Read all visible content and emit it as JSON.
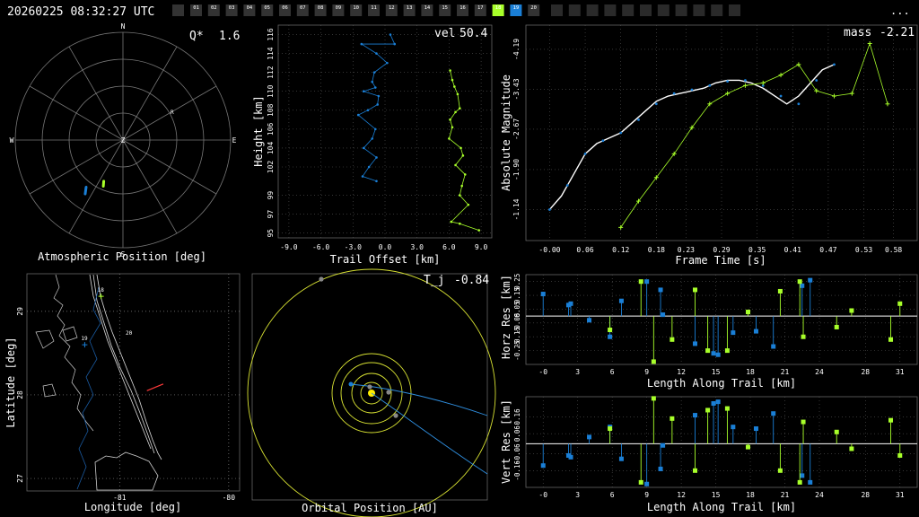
{
  "header": {
    "timestamp": "20260225 08:32:27 UTC",
    "menu": "...",
    "cameras": {
      "labels": [
        "01",
        "02",
        "03",
        "04",
        "05",
        "06",
        "07",
        "08",
        "09",
        "10",
        "11",
        "12",
        "13",
        "14",
        "15",
        "16",
        "17",
        "18",
        "19",
        "20"
      ],
      "active_green": "18",
      "active_blue": "19"
    }
  },
  "colors": {
    "green": "#a8ff2a",
    "blue": "#1a7fd6",
    "white": "#ffffff",
    "grid": "#555555",
    "orbit": "#d6e032",
    "sun": "#ffee00"
  },
  "chart_data": [
    {
      "type": "polar",
      "id": "atmospheric",
      "xlabel": "Atmospheric Position [deg]",
      "directions": [
        "N",
        "E",
        "S",
        "W",
        "Z"
      ],
      "annotation": {
        "label": "Q*",
        "value": "1.6"
      },
      "marker_label": "R",
      "series": [
        {
          "name": "18",
          "color": "green",
          "points": [
            [
              205,
              52
            ],
            [
              203,
              48
            ]
          ]
        },
        {
          "name": "19",
          "color": "blue",
          "points": [
            [
              218,
              40
            ],
            [
              215,
              35
            ]
          ]
        }
      ]
    },
    {
      "type": "line",
      "id": "height",
      "xlabel": "Trail Offset [km]",
      "ylabel": "Height [km]",
      "annotation": {
        "label": "vel",
        "value": "50.4"
      },
      "xticks": [
        "-9.0",
        "-6.0",
        "-3.0",
        "0.0",
        "3.0",
        "6.0",
        "9.0"
      ],
      "yticks": [
        "95",
        "97",
        "99",
        "102",
        "104",
        "106",
        "108",
        "110",
        "112",
        "114",
        "116"
      ],
      "xlim": [
        -10,
        10
      ],
      "ylim": [
        94.5,
        117
      ],
      "series": [
        {
          "name": "19",
          "color": "blue",
          "x": [
            0.5,
            0.9,
            -2.2,
            -0.8,
            0.2,
            -1.0,
            -1.2,
            -0.9,
            -2.0,
            -0.6,
            -0.7,
            -1.6,
            -2.5,
            -0.9,
            -1.2,
            -2.0,
            -0.8,
            -1.5,
            -2.1,
            -0.8
          ],
          "y": [
            116,
            115,
            115,
            114,
            113,
            112,
            111,
            110.4,
            110,
            109.5,
            108.6,
            108,
            107.5,
            106,
            105,
            104,
            103,
            102,
            101,
            100.5
          ]
        },
        {
          "name": "18",
          "color": "green",
          "x": [
            6.1,
            6.3,
            6.5,
            6.8,
            7.0,
            6.6,
            6.1,
            6.3,
            6.0,
            7.1,
            7.3,
            6.6,
            7.5,
            7.2,
            7.0,
            7.8,
            6.2,
            7.0,
            8.8
          ],
          "y": [
            112.2,
            111.2,
            110.5,
            109.7,
            108.2,
            107.8,
            107,
            106.2,
            105,
            104,
            103.2,
            102.2,
            101.2,
            100,
            99,
            98,
            96.2,
            96,
            95.3
          ]
        }
      ]
    },
    {
      "type": "line",
      "id": "magnitude",
      "xlabel": "Frame Time [s]",
      "ylabel": "Absolute Magnitude",
      "annotation": {
        "label": "mass",
        "value": "-2.21"
      },
      "xticks": [
        "-0.00",
        "0.06",
        "0.12",
        "0.18",
        "0.23",
        "0.29",
        "0.35",
        "0.41",
        "0.47",
        "0.53",
        "0.58"
      ],
      "yticks": [
        "-1.14",
        "-1.90",
        "-2.67",
        "-3.43",
        "-4.19"
      ],
      "xlim": [
        -0.04,
        0.62
      ],
      "ylim": [
        -0.55,
        -4.65
      ],
      "series": [
        {
          "name": "fit",
          "color": "white",
          "x": [
            0,
            0.02,
            0.04,
            0.06,
            0.08,
            0.1,
            0.12,
            0.14,
            0.16,
            0.18,
            0.2,
            0.22,
            0.24,
            0.26,
            0.28,
            0.3,
            0.32,
            0.34,
            0.36,
            0.38,
            0.4,
            0.42,
            0.44,
            0.46,
            0.48
          ],
          "y": [
            -1.14,
            -1.4,
            -1.8,
            -2.2,
            -2.4,
            -2.5,
            -2.6,
            -2.8,
            -3.0,
            -3.2,
            -3.3,
            -3.35,
            -3.4,
            -3.45,
            -3.55,
            -3.6,
            -3.6,
            -3.55,
            -3.45,
            -3.3,
            -3.15,
            -3.3,
            -3.55,
            -3.8,
            -3.9
          ]
        },
        {
          "name": "19",
          "color": "blue",
          "x": [
            0,
            0.03,
            0.06,
            0.09,
            0.12,
            0.15,
            0.18,
            0.21,
            0.24,
            0.27,
            0.3,
            0.33,
            0.36,
            0.39,
            0.42,
            0.45,
            0.48
          ],
          "y": [
            -1.14,
            -1.6,
            -2.2,
            -2.45,
            -2.6,
            -2.85,
            -3.15,
            -3.35,
            -3.42,
            -3.5,
            -3.58,
            -3.6,
            -3.5,
            -3.3,
            -3.15,
            -3.6,
            -3.9
          ]
        },
        {
          "name": "18",
          "color": "green",
          "x": [
            0.12,
            0.15,
            0.18,
            0.21,
            0.24,
            0.27,
            0.3,
            0.33,
            0.36,
            0.39,
            0.42,
            0.45,
            0.48,
            0.51,
            0.54,
            0.57
          ],
          "y": [
            -0.8,
            -1.3,
            -1.75,
            -2.2,
            -2.7,
            -3.15,
            -3.35,
            -3.5,
            -3.55,
            -3.7,
            -3.9,
            -3.4,
            -3.3,
            -3.35,
            -4.3,
            -3.15
          ]
        }
      ]
    },
    {
      "type": "map",
      "id": "ground",
      "xlabel": "Longitude [deg]",
      "ylabel": "Latitude [deg]",
      "xticks": [
        "-81",
        "-80"
      ],
      "yticks": [
        "29",
        "28",
        "27"
      ],
      "xlim": [
        -81.85,
        -79.9
      ],
      "ylim": [
        26.85,
        29.45
      ],
      "station_labels": [
        "18",
        "19",
        "20"
      ],
      "stations": [
        {
          "name": "18",
          "color": "green",
          "lon": -81.17,
          "lat": 29.18
        },
        {
          "name": "19",
          "color": "blue",
          "lon": -81.32,
          "lat": 28.6
        },
        {
          "name": "20",
          "color": "white",
          "lon": -80.97,
          "lat": 28.72
        }
      ],
      "trajectory": [
        [
          -80.75,
          28.05
        ],
        [
          -80.6,
          28.13
        ]
      ]
    },
    {
      "type": "orbit",
      "id": "orbital",
      "xlabel": "Orbital Position [AU]",
      "annotation": {
        "label": "T_j",
        "value": "-0.84"
      }
    },
    {
      "type": "stem",
      "id": "horizontal_residuals",
      "xlabel": "Length Along Trail [km]",
      "ylabel": "Horz Res [km]",
      "xticks": [
        "-0",
        "3",
        "6",
        "9",
        "12",
        "15",
        "18",
        "21",
        "24",
        "28",
        "31"
      ],
      "yticks": [
        "0.25",
        "0.15",
        "0.05",
        "-0.05",
        "-0.15",
        "-0.25"
      ],
      "xlim": [
        -1.5,
        32.5
      ],
      "ylim": [
        -0.35,
        0.3
      ],
      "series": [
        {
          "name": "19",
          "color": "blue",
          "x": [
            0,
            2.2,
            2.4,
            4,
            5.8,
            6.8,
            9,
            10.2,
            10.4,
            13.2,
            14.8,
            15.2,
            16.5,
            18.5,
            20.0,
            22.5,
            23.2
          ],
          "y": [
            0.16,
            0.08,
            0.09,
            -0.03,
            -0.15,
            0.11,
            0.25,
            0.19,
            0.01,
            -0.2,
            -0.27,
            -0.28,
            -0.12,
            -0.11,
            -0.22,
            0.22,
            0.26
          ]
        },
        {
          "name": "18",
          "color": "green",
          "x": [
            5.8,
            8.5,
            9.6,
            11.2,
            13.2,
            14.3,
            16.0,
            17.8,
            20.6,
            22.3,
            22.6,
            25.5,
            26.8,
            30.2,
            31.0
          ],
          "y": [
            -0.1,
            0.25,
            -0.33,
            -0.17,
            0.19,
            -0.25,
            -0.25,
            0.03,
            0.18,
            0.25,
            -0.15,
            -0.08,
            0.04,
            -0.17,
            0.09
          ]
        }
      ]
    },
    {
      "type": "stem",
      "id": "vertical_residuals",
      "xlabel": "Length Along Trail [km]",
      "ylabel": "Vert Res [km]",
      "xticks": [
        "-0",
        "3",
        "6",
        "9",
        "12",
        "15",
        "18",
        "21",
        "24",
        "28",
        "31"
      ],
      "yticks": [
        "0.16",
        "0.06",
        "-0.06",
        "-0.16"
      ],
      "xlim": [
        -1.5,
        32.5
      ],
      "ylim": [
        -0.26,
        0.28
      ],
      "series": [
        {
          "name": "19",
          "color": "blue",
          "x": [
            0,
            2.2,
            2.4,
            4,
            5.8,
            6.8,
            9,
            10.2,
            10.4,
            13.2,
            14.8,
            15.2,
            16.5,
            18.5,
            20.0,
            22.5,
            23.2
          ],
          "y": [
            -0.13,
            -0.07,
            -0.08,
            0.04,
            0.1,
            -0.09,
            -0.24,
            -0.15,
            -0.01,
            0.17,
            0.24,
            0.25,
            0.1,
            0.09,
            0.18,
            -0.19,
            -0.23
          ]
        },
        {
          "name": "18",
          "color": "green",
          "x": [
            5.8,
            8.5,
            9.6,
            11.2,
            13.2,
            14.3,
            16.0,
            17.8,
            20.6,
            22.3,
            22.6,
            25.5,
            26.8,
            30.2,
            31.0
          ],
          "y": [
            0.09,
            -0.23,
            0.27,
            0.15,
            -0.16,
            0.2,
            0.21,
            -0.02,
            -0.16,
            -0.23,
            0.13,
            0.07,
            -0.03,
            0.14,
            -0.07
          ]
        }
      ]
    }
  ]
}
